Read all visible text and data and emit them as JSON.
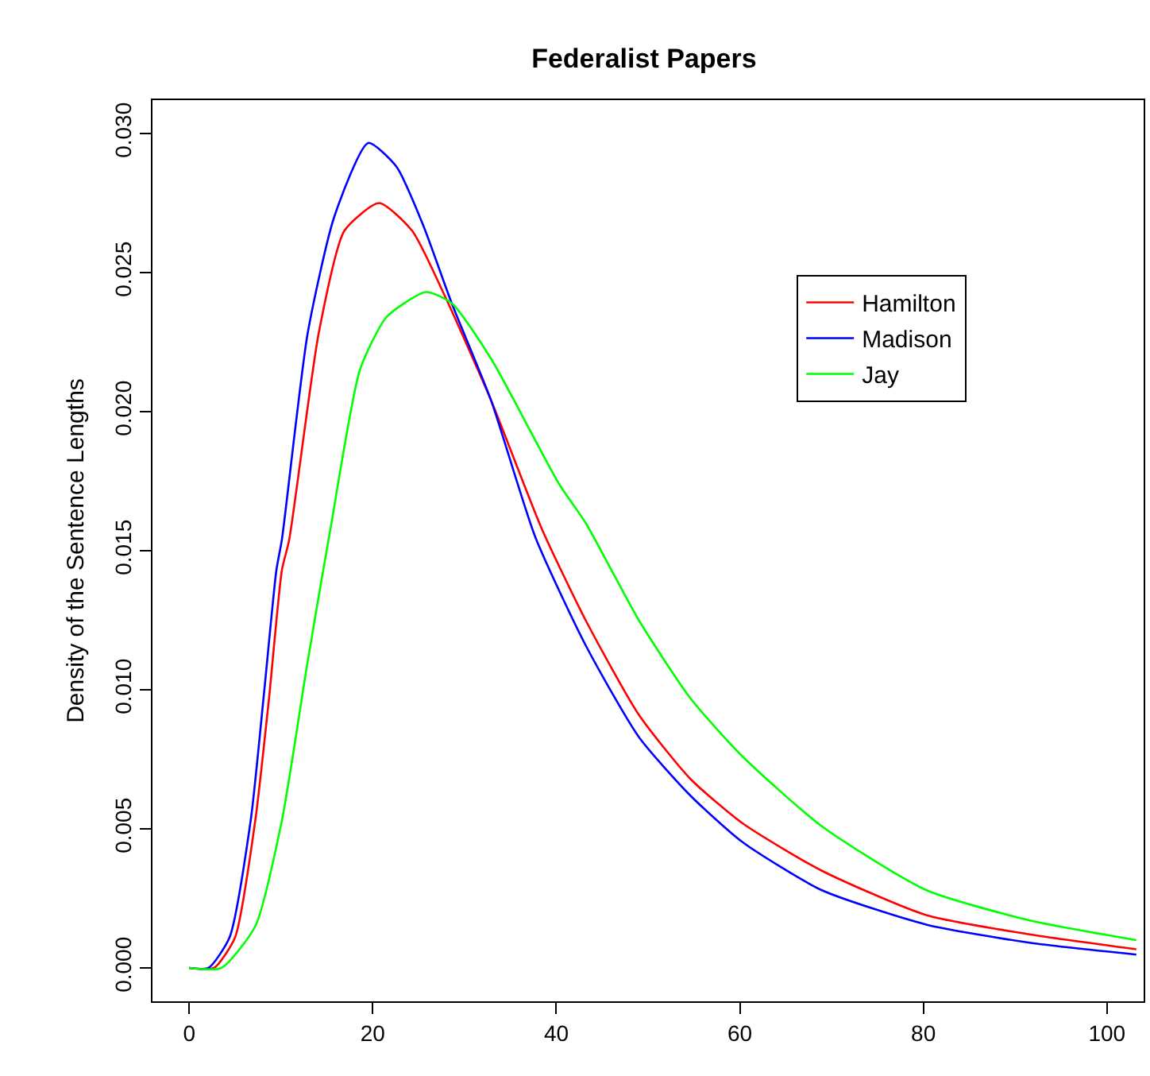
{
  "chart_data": {
    "type": "line",
    "title": "Federalist Papers",
    "ylabel": "Density of the Sentence Lengths",
    "xlim": [
      -4,
      104
    ],
    "xticks": [
      0,
      20,
      40,
      60,
      80,
      100
    ],
    "ylim": [
      -0.0012,
      0.0312
    ],
    "yticks": [
      {
        "value": 0,
        "label": "0.000"
      },
      {
        "value": 0.005,
        "label": "0.005"
      },
      {
        "value": 0.01,
        "label": "0.010"
      },
      {
        "value": 0.015,
        "label": "0.015"
      },
      {
        "value": 0.02,
        "label": "0.020"
      },
      {
        "value": 0.025,
        "label": "0.025"
      },
      {
        "value": 0.03,
        "label": "0.030"
      }
    ],
    "legend": "top right",
    "marker": "none",
    "line_style": "solid",
    "series": [
      {
        "name": "Hamilton",
        "color": "#ff0000",
        "x": [
          0,
          2.7,
          5.0,
          7.2,
          8.7,
          10.1,
          10.9,
          14.1,
          16.9,
          20.7,
          24.3,
          27.8,
          32.9,
          38.4,
          43.2,
          49.0,
          54.6,
          60.3,
          68.9,
          80.3,
          91.7,
          103.2
        ],
        "values": [
          0,
          0,
          0.0011,
          0.0053,
          0.0097,
          0.0143,
          0.0154,
          0.0228,
          0.0265,
          0.0275,
          0.0265,
          0.0242,
          0.0204,
          0.0158,
          0.0125,
          0.0091,
          0.0068,
          0.0052,
          0.0035,
          0.0019,
          0.0012,
          0.00067
        ]
      },
      {
        "name": "Madison",
        "color": "#0000ff",
        "x": [
          0,
          2.1,
          4.4,
          6.7,
          8.1,
          9.5,
          10.1,
          12.9,
          15.8,
          19.5,
          22.6,
          25.5,
          28.6,
          32.9,
          37.7,
          43.2,
          49.0,
          54.6,
          60.3,
          68.9,
          80.3,
          91.7,
          103.2
        ],
        "values": [
          0,
          0,
          0.0011,
          0.0053,
          0.0097,
          0.0143,
          0.0154,
          0.0228,
          0.027,
          0.02966,
          0.0288,
          0.0267,
          0.0239,
          0.0204,
          0.0155,
          0.0116,
          0.0083,
          0.0062,
          0.00452,
          0.0028,
          0.00156,
          0.0009,
          0.00048
        ]
      },
      {
        "name": "Jay",
        "color": "#00ff00",
        "x": [
          0,
          3.5,
          7.2,
          10.1,
          12.9,
          15.5,
          18.6,
          21.5,
          25.8,
          28.6,
          32.9,
          40.3,
          43.2,
          49.0,
          54.6,
          60.3,
          68.9,
          80.3,
          91.7,
          103.2
        ],
        "values": [
          0,
          0,
          0.0015,
          0.0053,
          0.011,
          0.016,
          0.0215,
          0.0234,
          0.0243,
          0.0239,
          0.0219,
          0.0174,
          0.016,
          0.0125,
          0.0097,
          0.0076,
          0.0051,
          0.0028,
          0.0017,
          0.001
        ]
      }
    ]
  }
}
